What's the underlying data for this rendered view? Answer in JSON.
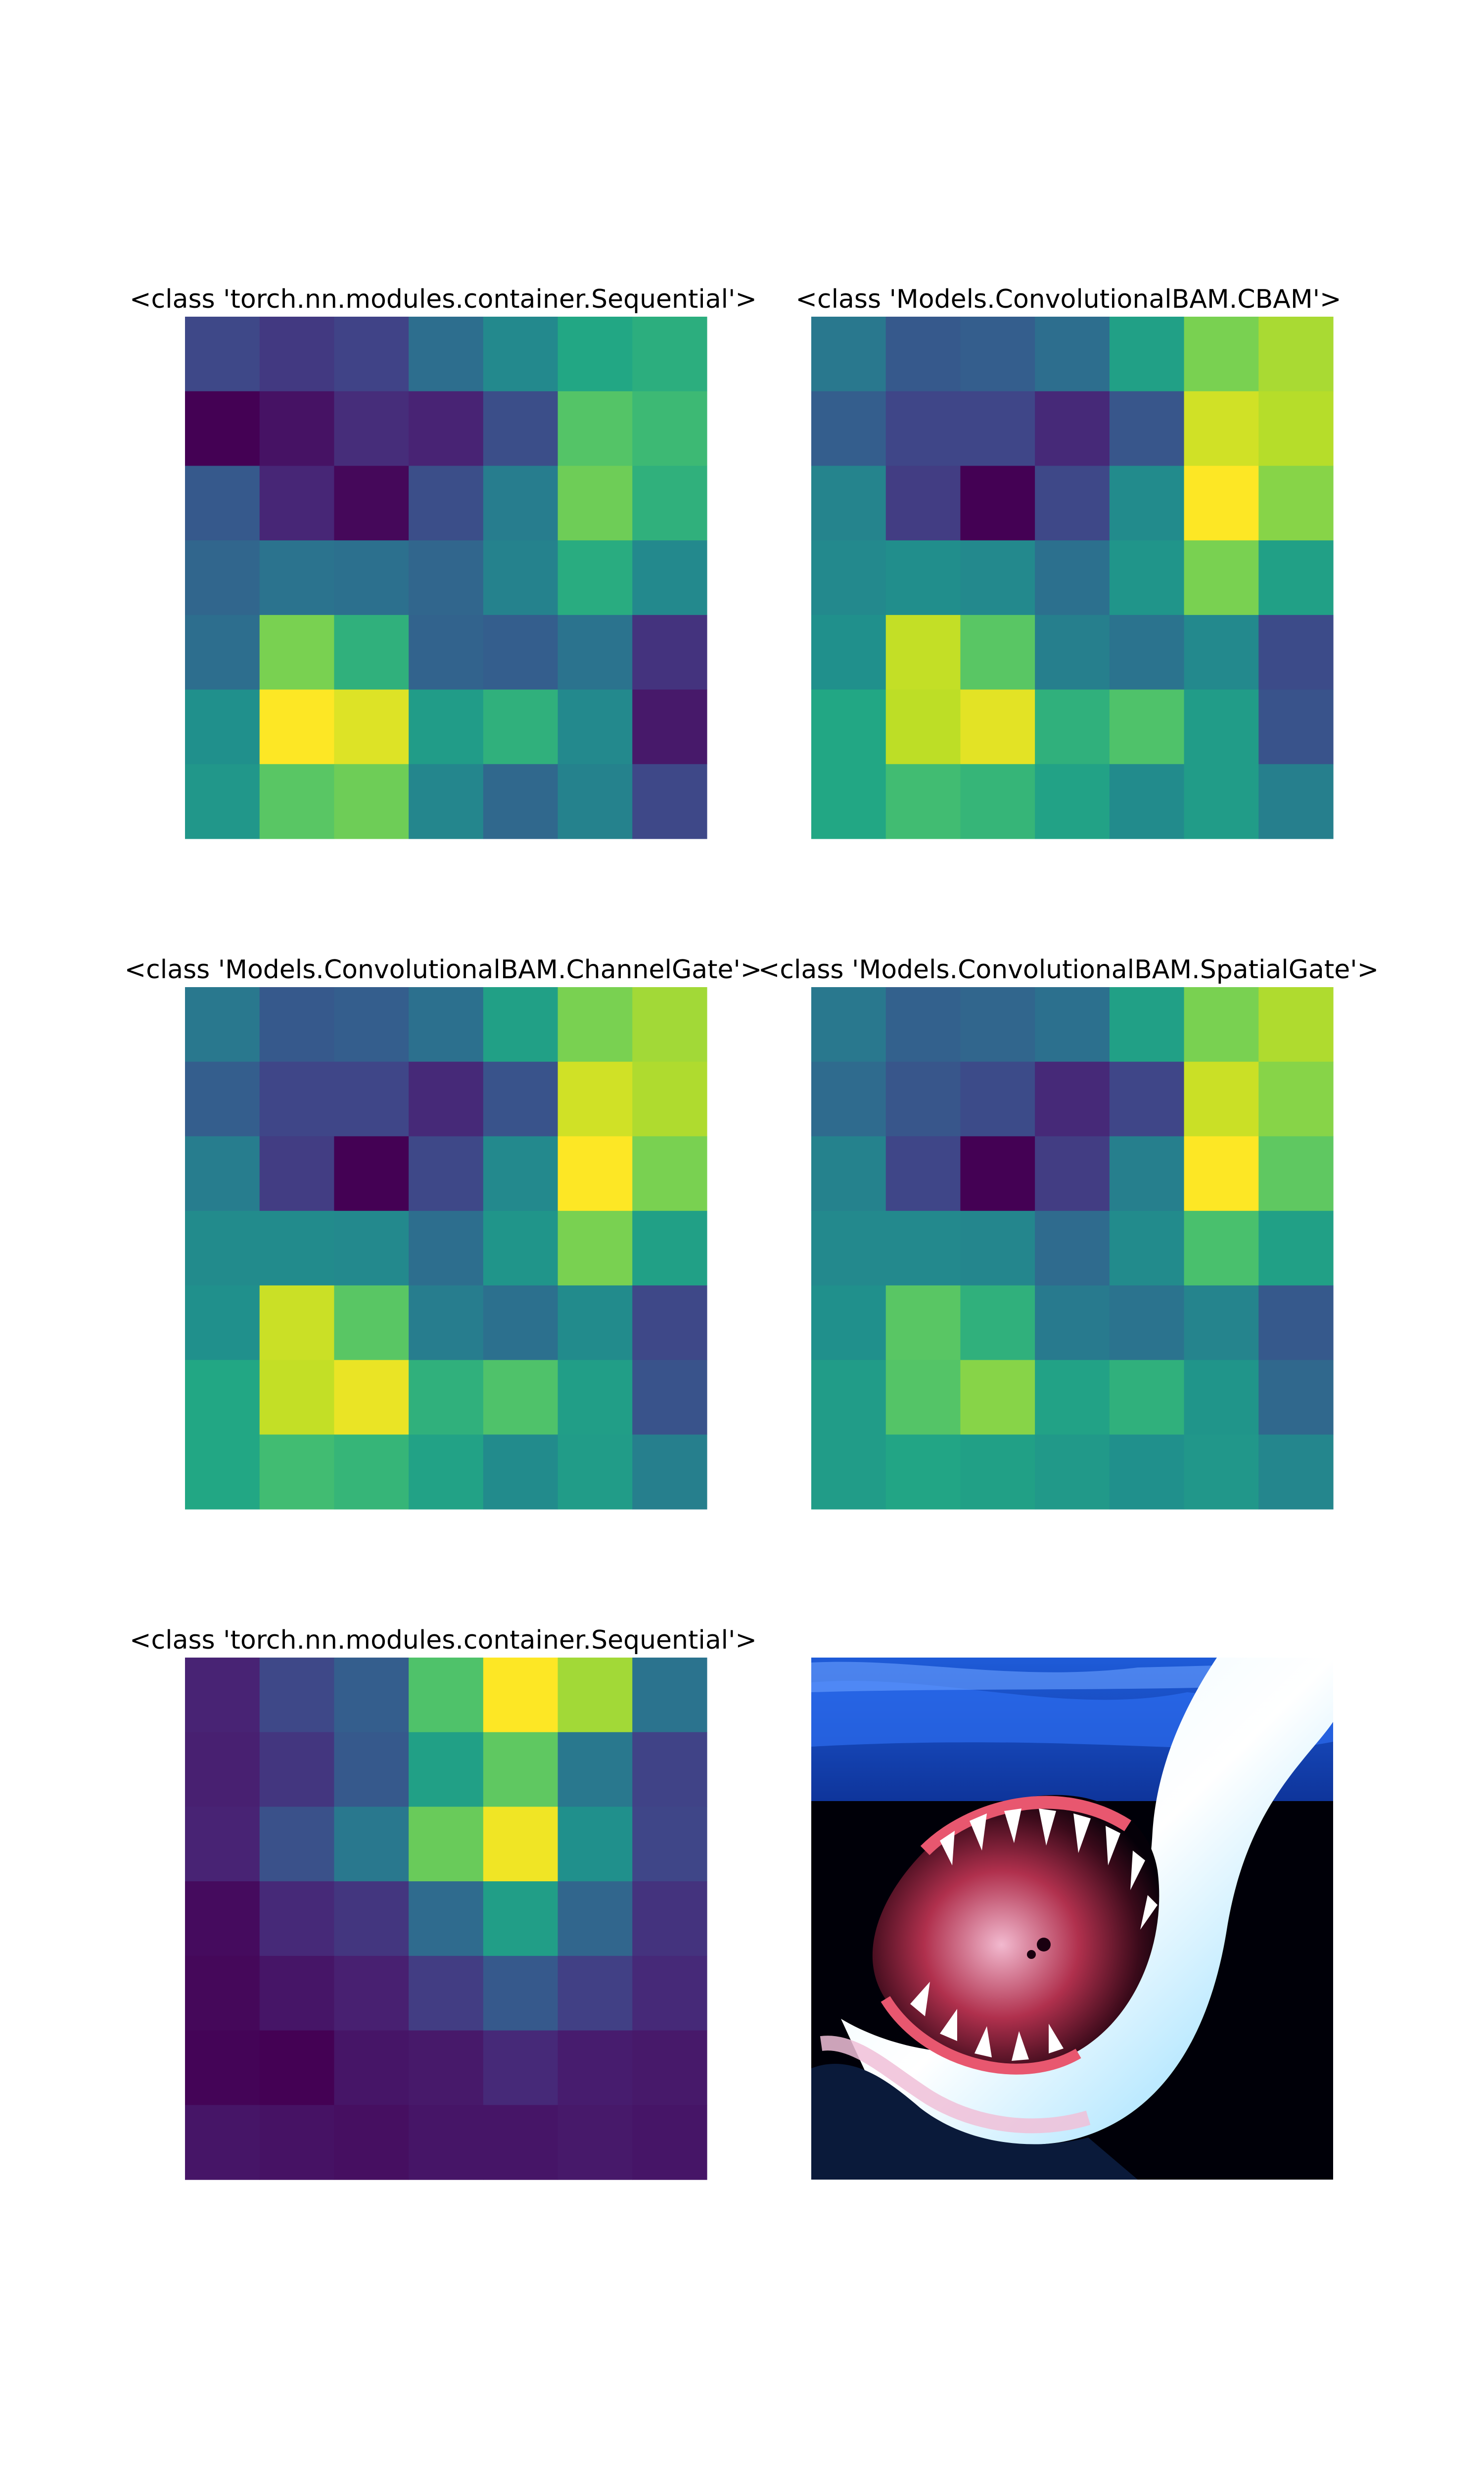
{
  "figure": {
    "panels": [
      {
        "title": "<class 'torch.nn.modules.container.Sequential'>",
        "kind": "heatmap"
      },
      {
        "title": "<class 'Models.ConvolutionalBAM.CBAM'>",
        "kind": "heatmap"
      },
      {
        "title": "<class 'Models.ConvolutionalBAM.ChannelGate'>",
        "kind": "heatmap"
      },
      {
        "title": "<class 'Models.ConvolutionalBAM.SpatialGate'>",
        "kind": "heatmap"
      },
      {
        "title": "<class 'torch.nn.modules.container.Sequential'>",
        "kind": "heatmap"
      },
      {
        "title": "",
        "kind": "image",
        "image_subject": "shark-open-jaws-photo"
      }
    ]
  },
  "chart_data": [
    {
      "type": "heatmap",
      "title": "<class 'torch.nn.modules.container.Sequential'>",
      "colormap": "viridis",
      "grid": false,
      "values": [
        [
          0.22,
          0.17,
          0.2,
          0.36,
          0.47,
          0.6,
          0.63
        ],
        [
          0.0,
          0.05,
          0.13,
          0.1,
          0.24,
          0.73,
          0.68
        ],
        [
          0.28,
          0.11,
          0.02,
          0.24,
          0.42,
          0.78,
          0.64
        ],
        [
          0.33,
          0.38,
          0.37,
          0.33,
          0.44,
          0.62,
          0.47
        ],
        [
          0.36,
          0.8,
          0.64,
          0.32,
          0.3,
          0.38,
          0.15
        ],
        [
          0.5,
          1.0,
          0.95,
          0.55,
          0.64,
          0.47,
          0.07
        ],
        [
          0.53,
          0.74,
          0.78,
          0.46,
          0.34,
          0.44,
          0.22
        ]
      ]
    },
    {
      "type": "heatmap",
      "title": "<class 'Models.ConvolutionalBAM.CBAM'>",
      "colormap": "viridis",
      "grid": false,
      "values": [
        [
          0.4,
          0.28,
          0.3,
          0.36,
          0.57,
          0.8,
          0.87
        ],
        [
          0.3,
          0.21,
          0.21,
          0.12,
          0.27,
          0.93,
          0.89
        ],
        [
          0.45,
          0.18,
          0.0,
          0.22,
          0.48,
          1.0,
          0.82
        ],
        [
          0.47,
          0.49,
          0.47,
          0.37,
          0.52,
          0.8,
          0.57
        ],
        [
          0.5,
          0.91,
          0.74,
          0.43,
          0.38,
          0.47,
          0.23
        ],
        [
          0.6,
          0.9,
          0.96,
          0.64,
          0.72,
          0.55,
          0.26
        ],
        [
          0.6,
          0.69,
          0.66,
          0.58,
          0.48,
          0.55,
          0.43
        ]
      ]
    },
    {
      "type": "heatmap",
      "title": "<class 'Models.ConvolutionalBAM.ChannelGate'>",
      "colormap": "viridis",
      "grid": false,
      "values": [
        [
          0.4,
          0.28,
          0.3,
          0.37,
          0.57,
          0.8,
          0.86
        ],
        [
          0.3,
          0.21,
          0.21,
          0.12,
          0.26,
          0.93,
          0.88
        ],
        [
          0.42,
          0.18,
          0.0,
          0.22,
          0.47,
          1.0,
          0.8
        ],
        [
          0.48,
          0.48,
          0.47,
          0.36,
          0.52,
          0.8,
          0.57
        ],
        [
          0.5,
          0.92,
          0.74,
          0.42,
          0.37,
          0.48,
          0.22
        ],
        [
          0.6,
          0.91,
          0.97,
          0.64,
          0.72,
          0.56,
          0.26
        ],
        [
          0.6,
          0.69,
          0.66,
          0.58,
          0.48,
          0.55,
          0.43
        ]
      ]
    },
    {
      "type": "heatmap",
      "title": "<class 'Models.ConvolutionalBAM.SpatialGate'>",
      "colormap": "viridis",
      "grid": false,
      "values": [
        [
          0.4,
          0.31,
          0.33,
          0.37,
          0.57,
          0.8,
          0.88
        ],
        [
          0.35,
          0.27,
          0.23,
          0.12,
          0.21,
          0.92,
          0.82
        ],
        [
          0.44,
          0.21,
          0.0,
          0.18,
          0.43,
          1.0,
          0.75
        ],
        [
          0.47,
          0.47,
          0.46,
          0.35,
          0.48,
          0.71,
          0.57
        ],
        [
          0.5,
          0.74,
          0.64,
          0.41,
          0.38,
          0.45,
          0.28
        ],
        [
          0.55,
          0.73,
          0.82,
          0.58,
          0.64,
          0.52,
          0.34
        ],
        [
          0.55,
          0.59,
          0.57,
          0.54,
          0.5,
          0.53,
          0.46
        ]
      ]
    },
    {
      "type": "heatmap",
      "title": "<class 'torch.nn.modules.container.Sequential'>",
      "colormap": "viridis",
      "grid": false,
      "values": [
        [
          0.1,
          0.22,
          0.3,
          0.72,
          1.0,
          0.86,
          0.38
        ],
        [
          0.09,
          0.16,
          0.28,
          0.57,
          0.75,
          0.4,
          0.2
        ],
        [
          0.1,
          0.25,
          0.4,
          0.77,
          0.98,
          0.5,
          0.21
        ],
        [
          0.03,
          0.12,
          0.16,
          0.35,
          0.56,
          0.33,
          0.15
        ],
        [
          0.02,
          0.06,
          0.09,
          0.18,
          0.28,
          0.19,
          0.12
        ],
        [
          0.01,
          0.0,
          0.06,
          0.07,
          0.12,
          0.08,
          0.07
        ],
        [
          0.06,
          0.05,
          0.04,
          0.06,
          0.06,
          0.07,
          0.06
        ]
      ]
    }
  ]
}
